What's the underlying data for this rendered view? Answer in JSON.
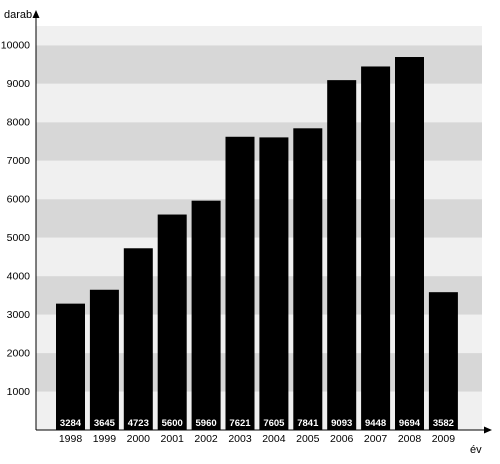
{
  "chart_data": {
    "type": "bar",
    "title": "",
    "ylabel": "darab",
    "xlabel": "év",
    "ylim": [
      0,
      10500
    ],
    "yticks": [
      1000,
      2000,
      3000,
      4000,
      5000,
      6000,
      7000,
      8000,
      9000,
      10000
    ],
    "grid": "horizontal alternating bands",
    "categories": [
      "1998",
      "1999",
      "2000",
      "2001",
      "2002",
      "2003",
      "2004",
      "2005",
      "2006",
      "2007",
      "2008",
      "2009"
    ],
    "values": [
      3284,
      3645,
      4723,
      5600,
      5960,
      7621,
      7605,
      7841,
      9093,
      9448,
      9694,
      3582
    ],
    "value_labels": [
      "3284",
      "3645",
      "4723",
      "5600",
      "5960",
      "7621",
      "7605",
      "7841",
      "9093",
      "9448",
      "9694",
      "3582"
    ],
    "colors": {
      "bar": "#000000",
      "band_dark": "#d7d7d7",
      "band_light": "#f0f0f0",
      "axis": "#000000",
      "value_label": "#ffffff"
    }
  }
}
